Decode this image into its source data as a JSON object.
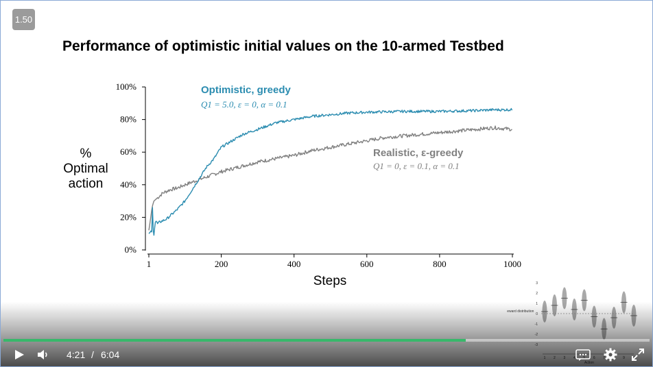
{
  "player": {
    "speed": "1.50",
    "current_time": "4:21",
    "separator": "/",
    "duration": "6:04",
    "progress_fraction": 0.716,
    "colors": {
      "progress": "#38b86b",
      "track": "#bfbfbf"
    },
    "icons": [
      "play-icon",
      "volume-icon",
      "captions-icon",
      "gear-icon",
      "fullscreen-icon"
    ]
  },
  "slide": {
    "title": "Performance of optimistic initial values on the 10-armed Testbed",
    "ylabel_lines": [
      "%",
      "Optimal",
      "action"
    ]
  },
  "chart_data": {
    "type": "line",
    "title": "Performance of optimistic initial values on the 10-armed Testbed",
    "xlabel": "Steps",
    "ylabel": "% Optimal action",
    "xlim": [
      0,
      1000
    ],
    "ylim": [
      0,
      100
    ],
    "x_ticks": [
      1,
      200,
      400,
      600,
      800,
      1000
    ],
    "x_tick_labels": [
      "1",
      "200",
      "400",
      "600",
      "800",
      "1000"
    ],
    "y_ticks": [
      0,
      20,
      40,
      60,
      80,
      100
    ],
    "y_tick_labels": [
      "0%",
      "20%",
      "40%",
      "60%",
      "80%",
      "100%"
    ],
    "series": [
      {
        "name": "Optimistic, greedy",
        "params": "Q1 = 5.0, ε = 0, α = 0.1",
        "color": "#2b8cb0",
        "x": [
          1,
          5,
          8,
          10,
          12,
          13,
          15,
          18,
          20,
          25,
          30,
          40,
          50,
          60,
          80,
          100,
          120,
          140,
          160,
          180,
          200,
          230,
          260,
          300,
          350,
          400,
          450,
          500,
          550,
          600,
          700,
          800,
          900,
          950,
          1000
        ],
        "values": [
          10,
          11,
          12,
          10,
          42,
          12,
          9,
          16,
          18,
          16,
          17,
          18,
          19,
          21,
          25,
          30,
          37,
          44,
          51,
          56,
          63,
          67,
          71,
          74,
          78,
          80,
          82,
          83,
          84,
          84.5,
          85,
          85,
          85.5,
          86,
          86
        ]
      },
      {
        "name": "Realistic, ε-greedy",
        "params": "Q1 = 0, ε = 0.1, α = 0.1",
        "color": "#808080",
        "x": [
          1,
          5,
          8,
          10,
          12,
          15,
          20,
          30,
          40,
          60,
          80,
          100,
          150,
          200,
          250,
          300,
          350,
          400,
          450,
          500,
          550,
          600,
          650,
          700,
          750,
          800,
          850,
          900,
          950,
          1000
        ],
        "values": [
          12,
          18,
          23,
          26,
          28,
          30,
          31,
          33,
          35,
          37,
          38,
          40,
          44,
          48,
          51,
          54,
          56,
          58,
          61,
          63,
          65,
          67,
          69,
          70,
          71,
          72,
          73,
          74,
          75,
          74
        ]
      }
    ],
    "annotations": [
      {
        "text": "Optimistic, greedy",
        "sub": "Q1 = 5.0, ε = 0, α = 0.1",
        "color": "#2b8cb0"
      },
      {
        "text": "Realistic, ε-greedy",
        "sub": "Q1 = 0, ε = 0.1, α = 0.1",
        "color": "#808080"
      }
    ],
    "inset": {
      "ylabel": "Reward distribution",
      "xlabel": "Action",
      "y_tick_labels": [
        "3",
        "2",
        "1",
        "0",
        "-1",
        "-2",
        "-3"
      ],
      "action_means": [
        0.2,
        0.8,
        1.5,
        0.4,
        1.3,
        -0.3,
        -1.5,
        -0.4,
        1.1,
        -0.2
      ]
    }
  }
}
